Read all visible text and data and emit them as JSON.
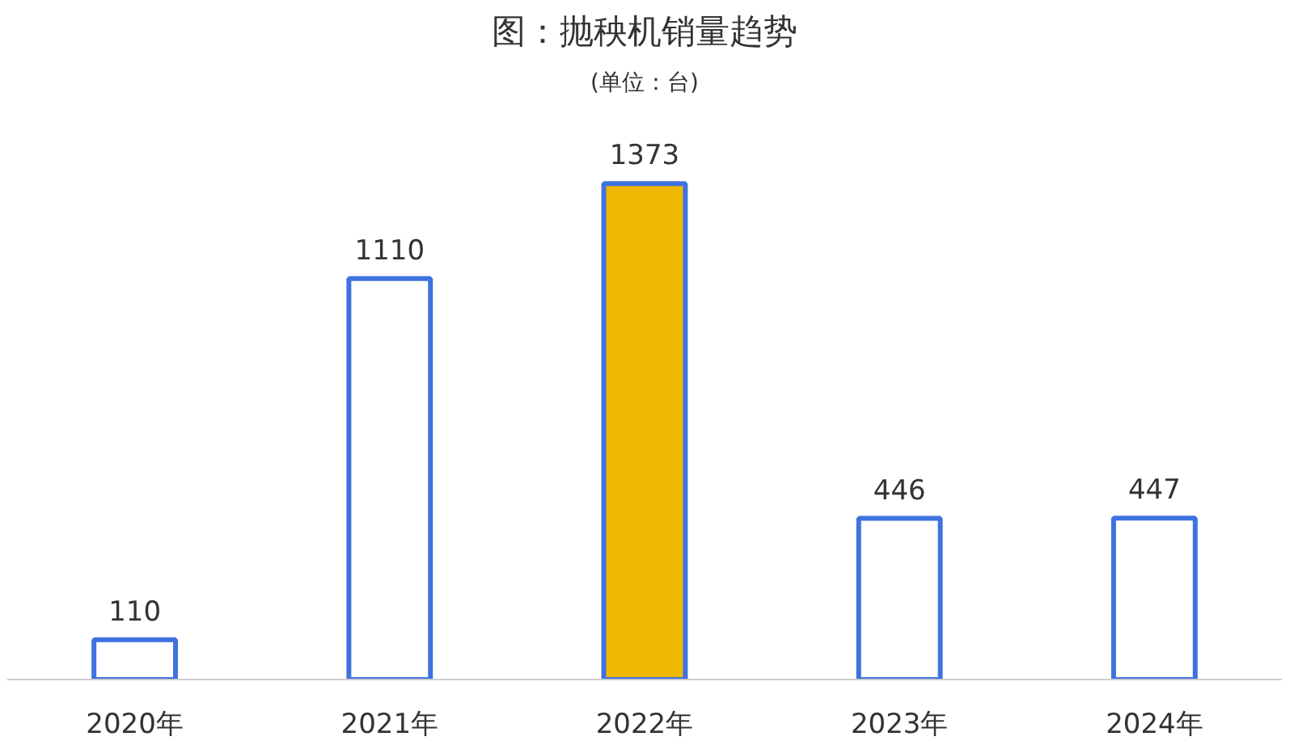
{
  "chart_data": {
    "type": "bar",
    "title": "图：抛秧机销量趋势",
    "subtitle": "(单位：台)",
    "categories": [
      "2020年",
      "2021年",
      "2022年",
      "2023年",
      "2024年"
    ],
    "values": [
      110,
      1110,
      1373,
      446,
      447
    ],
    "colors": [
      "#ffffff",
      "#ffffff",
      "#f0b800",
      "#ffffff",
      "#ffffff"
    ],
    "data_labels": true
  }
}
